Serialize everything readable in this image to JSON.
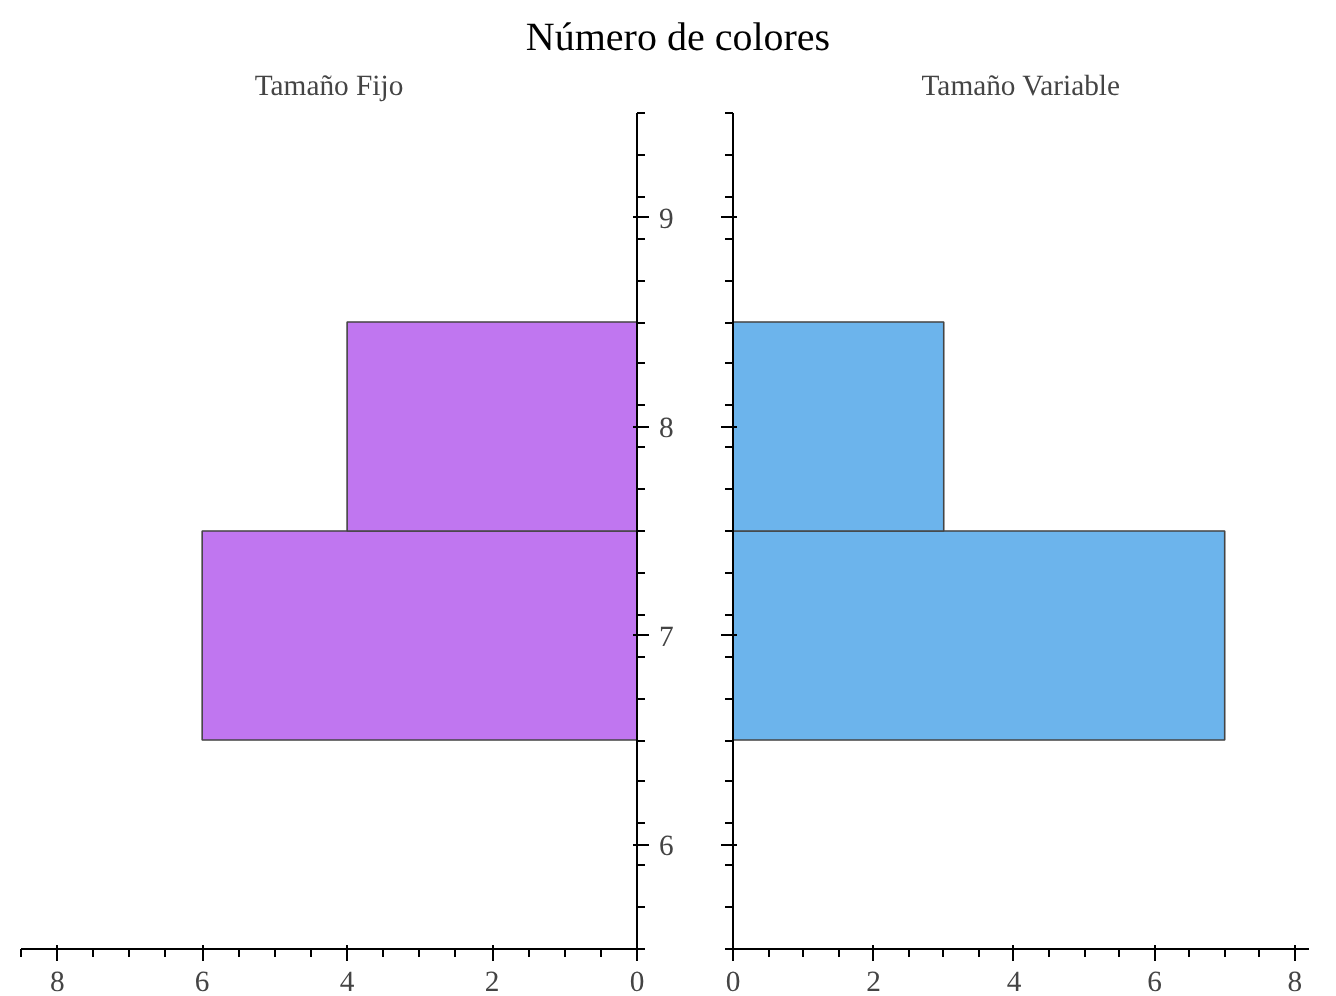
{
  "chart_data": [
    {
      "type": "histogram",
      "title": "Número de colores",
      "subtitle": "Tamaño Fijo",
      "orientation": "horizontal",
      "bins": [
        6.5,
        7.5,
        8.5
      ],
      "values": [
        6,
        4
      ],
      "color": "#c076f0",
      "xlim": [
        8.5,
        0
      ],
      "xticks": [
        8,
        6,
        4,
        2,
        0
      ],
      "ylim": [
        5.5,
        9.5
      ],
      "yticks": [
        6,
        7,
        8,
        9
      ],
      "grid": false
    },
    {
      "type": "histogram",
      "subtitle": "Tamaño Variable",
      "orientation": "horizontal",
      "bins": [
        6.5,
        7.5,
        8.5
      ],
      "values": [
        7,
        3
      ],
      "color": "#6cb4ec",
      "xlim": [
        0,
        8.2
      ],
      "xticks": [
        0,
        2,
        4,
        6,
        8
      ],
      "ylim": [
        5.5,
        9.5
      ],
      "yticks": [
        6,
        7,
        8,
        9
      ],
      "tick_labels": "x",
      "grid": false
    }
  ]
}
